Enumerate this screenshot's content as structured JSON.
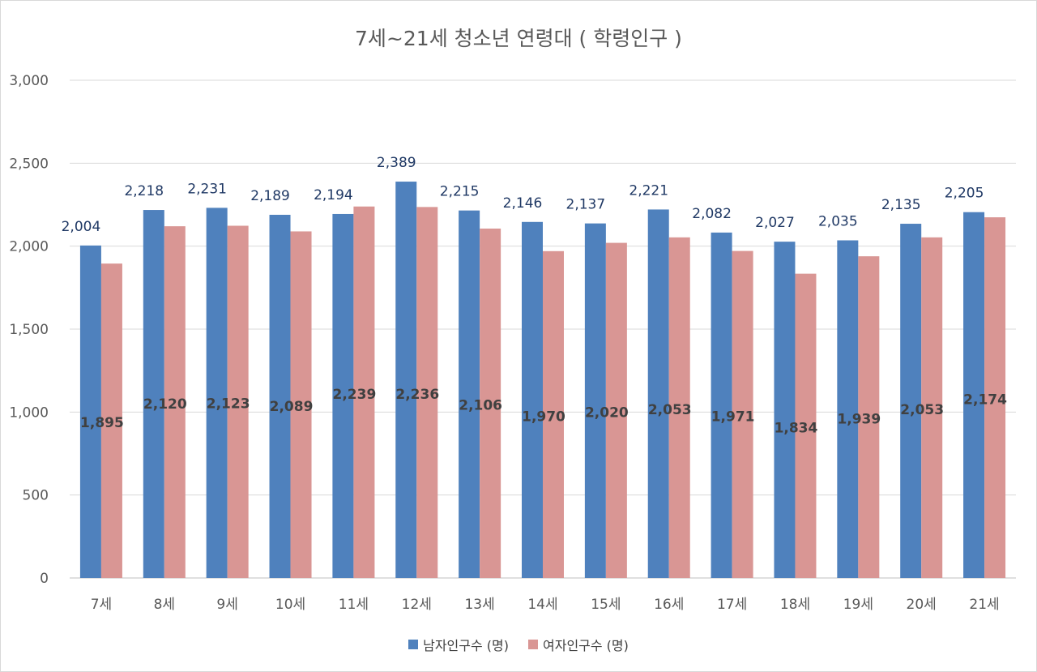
{
  "chart_data": {
    "type": "bar",
    "title": "7세~21세 청소년 연령대 ( 학령인구 )",
    "categories": [
      "7세",
      "8세",
      "9세",
      "10세",
      "11세",
      "12세",
      "13세",
      "14세",
      "15세",
      "16세",
      "17세",
      "18세",
      "19세",
      "20세",
      "21세"
    ],
    "series": [
      {
        "name": "남자인구수 (명)",
        "color": "#4f81bd",
        "label_color": "#1f3864",
        "values": [
          2004,
          2218,
          2231,
          2189,
          2194,
          2389,
          2215,
          2146,
          2137,
          2221,
          2082,
          2027,
          2035,
          2135,
          2205
        ],
        "labels": [
          "2,004",
          "2,218",
          "2,231",
          "2,189",
          "2,194",
          "2,389",
          "2,215",
          "2,146",
          "2,137",
          "2,221",
          "2,082",
          "2,027",
          "2,035",
          "2,135",
          "2,205"
        ]
      },
      {
        "name": "여자인구수 (명)",
        "color": "#d99694",
        "label_color": "#404040",
        "values": [
          1895,
          2120,
          2123,
          2089,
          2239,
          2236,
          2106,
          1970,
          2020,
          2053,
          1971,
          1834,
          1939,
          2053,
          2174
        ],
        "labels": [
          "1,895",
          "2,120",
          "2,123",
          "2,089",
          "2,239",
          "2,236",
          "2,106",
          "1,970",
          "2,020",
          "2,053",
          "1,971",
          "1,834",
          "1,939",
          "2,053",
          "2,174"
        ]
      }
    ],
    "ylim": [
      0,
      3000
    ],
    "yticks": [
      0,
      500,
      1000,
      1500,
      2000,
      2500,
      3000
    ],
    "ytick_labels": [
      "0",
      "500",
      "1,000",
      "1,500",
      "2,000",
      "2,500",
      "3,000"
    ],
    "grid": true,
    "legend": "bottom"
  }
}
